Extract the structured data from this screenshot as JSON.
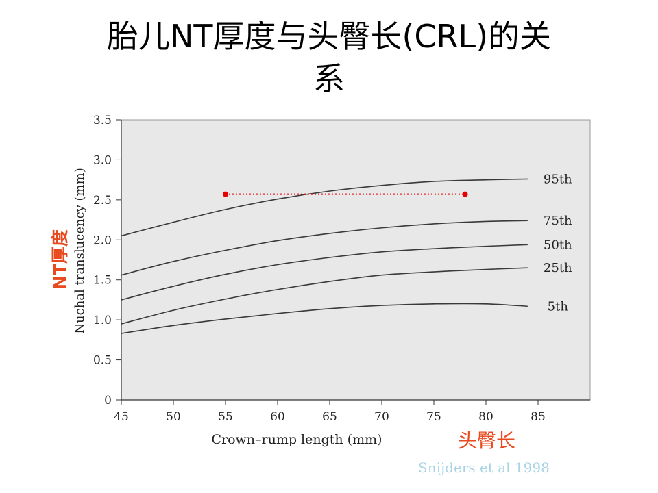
{
  "slide": {
    "title_line1": "胎儿NT厚度与头臀长(CRL)的关",
    "title_line2": "系",
    "cn_ylabel": "NT厚度",
    "cn_xlabel": "头臀长",
    "source": "Snijders et al 1998"
  },
  "chart_data": {
    "type": "line",
    "title": "",
    "xlabel": "Crown–rump length (mm)",
    "ylabel": "Nuchal translucency (mm)",
    "xlim": [
      45,
      90
    ],
    "ylim": [
      0,
      3.5
    ],
    "xticks": [
      45,
      50,
      55,
      60,
      65,
      70,
      75,
      80,
      85
    ],
    "yticks": [
      0,
      0.5,
      1.0,
      1.5,
      2.0,
      2.5,
      3.0,
      3.5
    ],
    "ytick_labels": [
      "0",
      "0.5",
      "1.0",
      "1.5",
      "2.0",
      "2.5",
      "3.0",
      "3.5"
    ],
    "grid": false,
    "background": "#e8e8e8",
    "line_color": "#3a3a3a",
    "series": [
      {
        "name": "95th",
        "x": [
          45,
          50,
          55,
          60,
          65,
          70,
          75,
          80,
          84
        ],
        "y": [
          2.05,
          2.22,
          2.38,
          2.51,
          2.61,
          2.68,
          2.73,
          2.75,
          2.76
        ]
      },
      {
        "name": "75th",
        "x": [
          45,
          50,
          55,
          60,
          65,
          70,
          75,
          80,
          84
        ],
        "y": [
          1.56,
          1.73,
          1.87,
          1.99,
          2.08,
          2.15,
          2.2,
          2.23,
          2.24
        ]
      },
      {
        "name": "50th",
        "x": [
          45,
          50,
          55,
          60,
          65,
          70,
          75,
          80,
          84
        ],
        "y": [
          1.25,
          1.42,
          1.57,
          1.69,
          1.78,
          1.85,
          1.89,
          1.92,
          1.94
        ]
      },
      {
        "name": "25th",
        "x": [
          45,
          50,
          55,
          60,
          65,
          70,
          75,
          80,
          84
        ],
        "y": [
          0.95,
          1.12,
          1.26,
          1.38,
          1.48,
          1.56,
          1.6,
          1.63,
          1.65
        ]
      },
      {
        "name": "5th",
        "x": [
          45,
          50,
          55,
          60,
          65,
          70,
          75,
          80,
          84
        ],
        "y": [
          0.83,
          0.93,
          1.01,
          1.08,
          1.14,
          1.18,
          1.2,
          1.2,
          1.17
        ]
      }
    ],
    "annotation_line": {
      "x": [
        55,
        78
      ],
      "y": 2.57,
      "color": "#e60000",
      "style": "dotted"
    }
  }
}
